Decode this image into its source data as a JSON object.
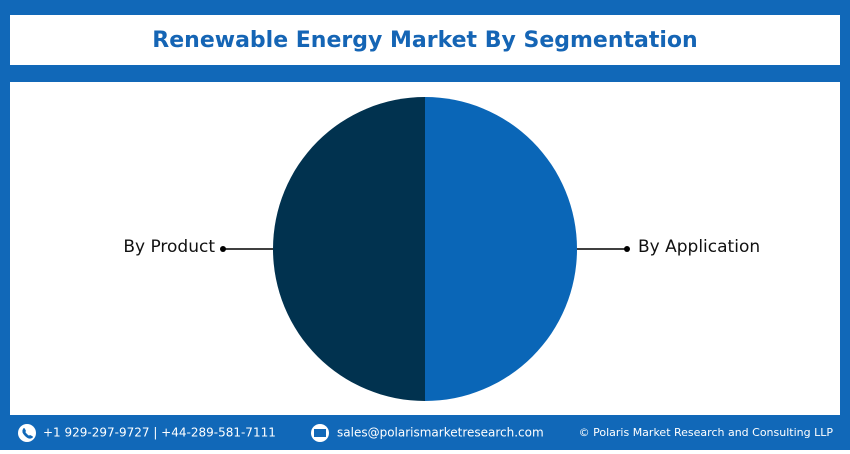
{
  "chart_data": {
    "type": "pie",
    "title": "Renewable Energy Market By Segmentation",
    "categories": [
      "By Product",
      "By Application"
    ],
    "values": [
      50,
      50
    ],
    "colors": [
      "#01324f",
      "#0a66b7"
    ]
  },
  "footer": {
    "phone": "+1 929-297-9727 | +44-289-581-7111",
    "email": "sales@polarismarketresearch.com",
    "copyright": "© Polaris Market Research and Consulting LLP"
  }
}
